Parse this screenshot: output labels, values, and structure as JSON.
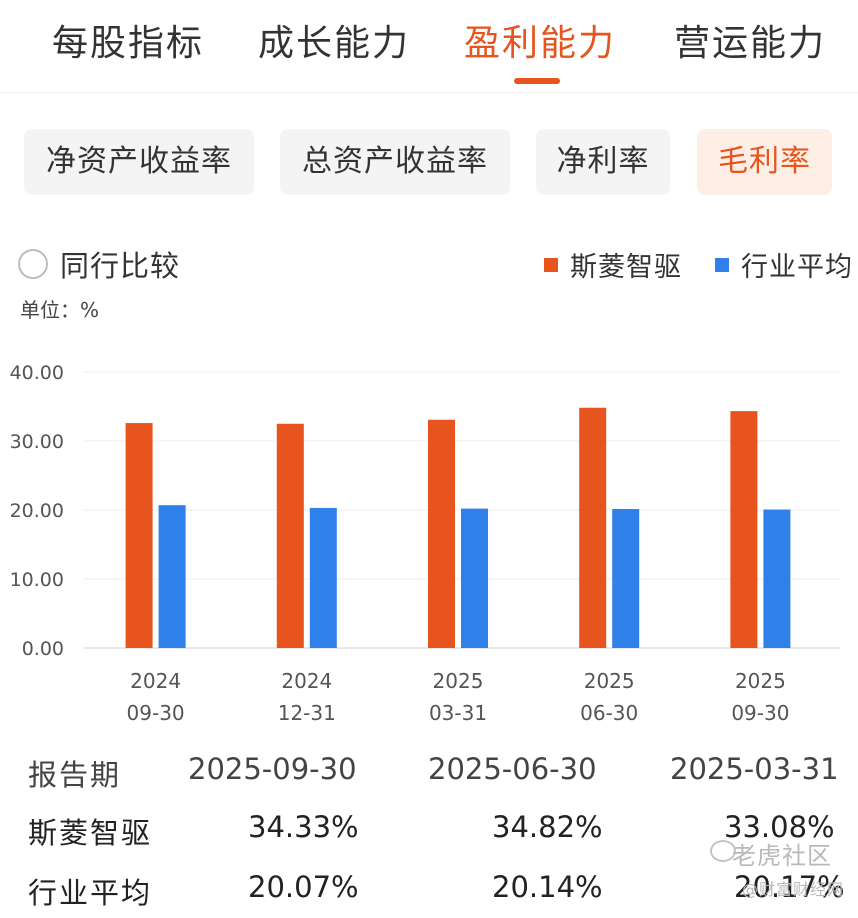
{
  "tabs": [
    {
      "label": "每股指标",
      "active": false
    },
    {
      "label": "成长能力",
      "active": false
    },
    {
      "label": "盈利能力",
      "active": true
    },
    {
      "label": "营运能力",
      "active": false
    }
  ],
  "subtabs": [
    {
      "label": "净资产收益率",
      "active": false
    },
    {
      "label": "总资产收益率",
      "active": false
    },
    {
      "label": "净利率",
      "active": false
    },
    {
      "label": "毛利率",
      "active": true
    }
  ],
  "compare": {
    "label": "同行比较",
    "checked": false
  },
  "legend": [
    {
      "label": "斯菱智驱",
      "color": "#e8541d"
    },
    {
      "label": "行业平均",
      "color": "#2f80e8"
    }
  ],
  "unit_label": "单位：%",
  "chart_data": {
    "type": "bar",
    "categories": [
      "2024\n09-30",
      "2024\n12-31",
      "2025\n03-31",
      "2025\n06-30",
      "2025\n09-30"
    ],
    "series": [
      {
        "name": "斯菱智驱",
        "values": [
          32.6,
          32.5,
          33.08,
          34.82,
          34.33
        ],
        "color": "#e8541d"
      },
      {
        "name": "行业平均",
        "values": [
          20.7,
          20.3,
          20.2,
          20.14,
          20.07
        ],
        "color": "#2f80e8"
      }
    ],
    "yticks": [
      "40.00",
      "30.00",
      "20.00",
      "10.00",
      "0.00"
    ],
    "ylim": [
      0,
      40
    ],
    "grid": true,
    "legend_position": "top-right"
  },
  "table": {
    "header": {
      "label": "报告期",
      "values": [
        "2025-09-30",
        "2025-06-30",
        "2025-03-31"
      ]
    },
    "rows": [
      {
        "label": "斯菱智驱",
        "values": [
          "34.33%",
          "34.82%",
          "33.08%"
        ]
      },
      {
        "label": "行业平均",
        "values": [
          "20.07%",
          "20.14%",
          "20.17%"
        ]
      }
    ]
  },
  "watermark": {
    "line1": "老虎社区",
    "line2": "@财富财经网"
  }
}
